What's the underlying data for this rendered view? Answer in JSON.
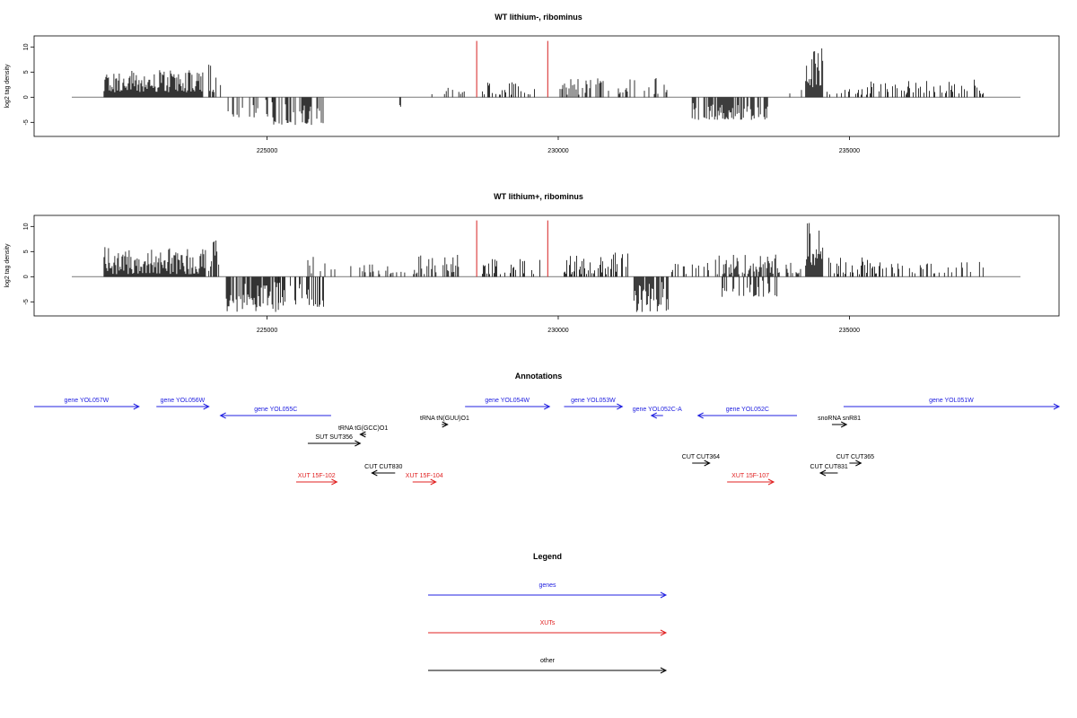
{
  "chart_data": [
    {
      "type": "bar",
      "title": "WT lithium-, ribominus",
      "xlabel": "",
      "ylabel": "log2 tag density",
      "xlim": [
        221000,
        238600
      ],
      "ylim": [
        -7.8,
        12.2
      ],
      "x_ticks": [
        225000,
        230000,
        235000
      ],
      "x_tick_labels": [
        "225000",
        "230000",
        "235000"
      ],
      "y_ticks": [
        10,
        5,
        0,
        -5
      ],
      "y_tick_labels": [
        "10",
        "5",
        "0",
        "-5"
      ],
      "grid": false,
      "markers": [
        {
          "x": 228600,
          "color": "#d62020"
        },
        {
          "x": 229820,
          "color": "#d62020"
        }
      ],
      "segments": [
        {
          "start": 222200,
          "end": 223900,
          "min": 1.0,
          "max": 5.5,
          "density": 1.0
        },
        {
          "start": 224000,
          "end": 224220,
          "min": 1.0,
          "max": 6.5,
          "density": 0.6
        },
        {
          "start": 224300,
          "end": 225100,
          "min": -4.0,
          "max": -0.5,
          "density": 0.35
        },
        {
          "start": 225100,
          "end": 226000,
          "min": -5.5,
          "max": -1.0,
          "density": 0.45
        },
        {
          "start": 227200,
          "end": 227300,
          "min": -2.0,
          "max": -1.0,
          "density": 0.2
        },
        {
          "start": 227800,
          "end": 228400,
          "min": 0.5,
          "max": 2.0,
          "density": 0.2
        },
        {
          "start": 228700,
          "end": 229600,
          "min": 0.5,
          "max": 3.0,
          "density": 0.35
        },
        {
          "start": 230000,
          "end": 232000,
          "min": 0.5,
          "max": 4.0,
          "density": 0.3
        },
        {
          "start": 232300,
          "end": 233600,
          "min": -4.5,
          "max": -1.0,
          "density": 0.75
        },
        {
          "start": 233900,
          "end": 234200,
          "min": 0.5,
          "max": 2.5,
          "density": 0.2
        },
        {
          "start": 234250,
          "end": 234550,
          "min": 2.0,
          "max": 10.0,
          "density": 1.0
        },
        {
          "start": 234600,
          "end": 237300,
          "min": 0.5,
          "max": 3.5,
          "density": 0.35
        }
      ]
    },
    {
      "type": "bar",
      "title": "WT lithium+, ribominus",
      "xlabel": "",
      "ylabel": "log2 tag density",
      "xlim": [
        221000,
        238600
      ],
      "ylim": [
        -7.8,
        12.2
      ],
      "x_ticks": [
        225000,
        230000,
        235000
      ],
      "x_tick_labels": [
        "225000",
        "230000",
        "235000"
      ],
      "y_ticks": [
        10,
        5,
        0,
        -5
      ],
      "y_tick_labels": [
        "10",
        "5",
        "0",
        "-5"
      ],
      "grid": false,
      "markers": [
        {
          "x": 228600,
          "color": "#d62020"
        },
        {
          "x": 229820,
          "color": "#d62020"
        }
      ],
      "segments": [
        {
          "start": 222200,
          "end": 223950,
          "min": 0.5,
          "max": 6.0,
          "density": 1.0
        },
        {
          "start": 224000,
          "end": 224200,
          "min": 1.0,
          "max": 7.5,
          "density": 0.6
        },
        {
          "start": 224300,
          "end": 225200,
          "min": -7.0,
          "max": -1.0,
          "density": 0.8
        },
        {
          "start": 225200,
          "end": 226000,
          "min": -6.0,
          "max": -1.0,
          "density": 0.5
        },
        {
          "start": 225700,
          "end": 226200,
          "min": 0.5,
          "max": 4.0,
          "density": 0.4
        },
        {
          "start": 226300,
          "end": 227400,
          "min": 0.5,
          "max": 2.5,
          "density": 0.25
        },
        {
          "start": 227500,
          "end": 228400,
          "min": 0.5,
          "max": 4.5,
          "density": 0.4
        },
        {
          "start": 228700,
          "end": 229700,
          "min": 0.5,
          "max": 4.0,
          "density": 0.4
        },
        {
          "start": 230100,
          "end": 231200,
          "min": 0.5,
          "max": 5.0,
          "density": 0.6
        },
        {
          "start": 231300,
          "end": 231900,
          "min": -7.0,
          "max": -1.0,
          "density": 0.8
        },
        {
          "start": 231900,
          "end": 232600,
          "min": 0.5,
          "max": 3.0,
          "density": 0.3
        },
        {
          "start": 232700,
          "end": 233800,
          "min": 0.5,
          "max": 4.5,
          "density": 0.6
        },
        {
          "start": 232800,
          "end": 233800,
          "min": -4.0,
          "max": -0.5,
          "density": 0.4
        },
        {
          "start": 233900,
          "end": 234200,
          "min": 0.5,
          "max": 3.0,
          "density": 0.3
        },
        {
          "start": 234250,
          "end": 234550,
          "min": 2.0,
          "max": 11.0,
          "density": 1.0
        },
        {
          "start": 234600,
          "end": 235600,
          "min": 0.5,
          "max": 4.0,
          "density": 0.45
        },
        {
          "start": 235600,
          "end": 237300,
          "min": 0.5,
          "max": 3.0,
          "density": 0.3
        }
      ]
    }
  ],
  "annotations": {
    "title": "Annotations",
    "features": [
      {
        "label": "gene YOL057W",
        "start": 221000,
        "end": 222800,
        "strand": "+",
        "row": 0,
        "color": "#2020e0"
      },
      {
        "label": "gene YOL056W",
        "start": 223100,
        "end": 224000,
        "strand": "+",
        "row": 0,
        "color": "#2020e0"
      },
      {
        "label": "gene YOL055C",
        "start": 224200,
        "end": 226100,
        "strand": "-",
        "row": 1,
        "color": "#2020e0"
      },
      {
        "label": "gene YOL054W",
        "start": 228400,
        "end": 229850,
        "strand": "+",
        "row": 0,
        "color": "#2020e0"
      },
      {
        "label": "gene YOL053W",
        "start": 230100,
        "end": 231100,
        "strand": "+",
        "row": 0,
        "color": "#2020e0"
      },
      {
        "label": "gene YOL052C-A",
        "start": 231600,
        "end": 231800,
        "strand": "-",
        "row": 1,
        "color": "#2020e0"
      },
      {
        "label": "gene YOL052C",
        "start": 232400,
        "end": 234100,
        "strand": "-",
        "row": 1,
        "color": "#2020e0"
      },
      {
        "label": "gene YOL051W",
        "start": 234900,
        "end": 238600,
        "strand": "+",
        "row": 0,
        "color": "#2020e0"
      },
      {
        "label": "tRNA tG(GCC)O1",
        "start": 226600,
        "end": 226700,
        "strand": "-",
        "row": 3,
        "color": "#000000"
      },
      {
        "label": "tRNA tN(GUU)O1",
        "start": 228000,
        "end": 228100,
        "strand": "+",
        "row": 2,
        "color": "#000000"
      },
      {
        "label": "snoRNA snR81",
        "start": 234700,
        "end": 234950,
        "strand": "+",
        "row": 2,
        "color": "#000000"
      },
      {
        "label": "SUT SUT356",
        "start": 225700,
        "end": 226600,
        "strand": "+",
        "row": 4,
        "color": "#000000"
      },
      {
        "label": "CUT CUT364",
        "start": 232300,
        "end": 232600,
        "strand": "+",
        "row": 5,
        "color": "#000000"
      },
      {
        "label": "CUT CUT365",
        "start": 235000,
        "end": 235200,
        "strand": "+",
        "row": 5,
        "color": "#000000"
      },
      {
        "label": "CUT CUT830",
        "start": 226800,
        "end": 227200,
        "strand": "-",
        "row": 6,
        "color": "#000000"
      },
      {
        "label": "CUT CUT831",
        "start": 234500,
        "end": 234800,
        "strand": "-",
        "row": 6,
        "color": "#000000"
      },
      {
        "label": "XUT 15F-102",
        "start": 225500,
        "end": 226200,
        "strand": "+",
        "row": 7,
        "color": "#e02020"
      },
      {
        "label": "XUT 15F-104",
        "start": 227500,
        "end": 227900,
        "strand": "+",
        "row": 7,
        "color": "#e02020"
      },
      {
        "label": "XUT 15F-107",
        "start": 232900,
        "end": 233700,
        "strand": "+",
        "row": 7,
        "color": "#e02020"
      }
    ]
  },
  "legend": {
    "title": "Legend",
    "items": [
      {
        "label": "genes",
        "color": "#2020e0"
      },
      {
        "label": "XUTs",
        "color": "#e02020"
      },
      {
        "label": "other",
        "color": "#000000"
      }
    ]
  }
}
